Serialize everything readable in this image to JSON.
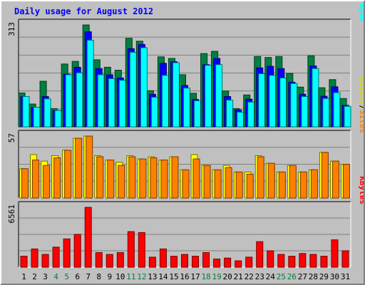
{
  "chart_data": {
    "type": "bar",
    "title": "Daily usage for August 2012",
    "days": [
      "1",
      "2",
      "3",
      "4",
      "5",
      "6",
      "7",
      "8",
      "9",
      "10",
      "11",
      "12",
      "13",
      "14",
      "15",
      "16",
      "17",
      "18",
      "19",
      "20",
      "21",
      "22",
      "23",
      "24",
      "25",
      "26",
      "27",
      "28",
      "29",
      "30",
      "31"
    ],
    "weekend_days": [
      "4",
      "5",
      "11",
      "12",
      "18",
      "19",
      "25",
      "26"
    ],
    "grid": true,
    "panels": [
      {
        "name": "hits-files-pages",
        "ymax": 313,
        "ymax_label": "313",
        "legend": [
          "Pages",
          "/",
          "Files",
          "/",
          "Hits"
        ],
        "series": [
          {
            "name": "Hits",
            "color": "#008040",
            "values": [
              104,
              70,
              140,
              56,
              193,
              201,
              313,
              206,
              183,
              174,
              272,
              263,
              111,
              215,
              210,
              160,
              103,
              225,
              232,
              110,
              56,
              98,
              216,
              213,
              216,
              164,
              122,
              218,
              120,
              145,
              87
            ]
          },
          {
            "name": "Files",
            "color": "#0000ff",
            "values": [
              93,
              60,
              93,
              50,
              162,
              183,
              292,
              179,
              160,
              150,
              240,
              253,
              100,
              195,
              200,
              127,
              84,
              191,
              210,
              93,
              52,
              85,
              181,
              186,
              179,
              137,
              100,
              187,
              94,
              123,
              66
            ]
          },
          {
            "name": "Pages",
            "color": "#00ffff",
            "values": [
              93,
              60,
              86,
              50,
              160,
              166,
              266,
              160,
              148,
              143,
              229,
              243,
              91,
              158,
              197,
              119,
              80,
              189,
              191,
              82,
              45,
              76,
              163,
              158,
              150,
              133,
              93,
              179,
              87,
              105,
              63
            ]
          }
        ]
      },
      {
        "name": "visits-sites",
        "ymax": 57,
        "ymax_label": "57",
        "legend": [
          "Sites",
          "/",
          "Visits"
        ],
        "series": [
          {
            "name": "Visits",
            "color": "#ffff00",
            "values": [
              27,
              40,
              34,
              39,
              44,
              55,
              57,
              39,
              35,
              33,
              39,
              36,
              38,
              35,
              38,
              26,
              40,
              30,
              26,
              30,
              24,
              24,
              39,
              32,
              24,
              30,
              24,
              26,
              42,
              34,
              31
            ]
          },
          {
            "name": "Sites",
            "color": "#ff8000",
            "values": [
              27,
              35,
              30,
              37,
              44,
              55,
              57,
              38,
              35,
              30,
              38,
              36,
              37,
              35,
              38,
              26,
              36,
              30,
              26,
              28,
              24,
              22,
              38,
              32,
              24,
              30,
              24,
              26,
              42,
              34,
              31
            ]
          }
        ]
      },
      {
        "name": "kbytes",
        "ymax": 6561,
        "ymax_label": "6561",
        "legend": [
          "KBytes"
        ],
        "series": [
          {
            "name": "KBytes",
            "color": "#ff0000",
            "values": [
              1200,
              2000,
              1400,
              2200,
              3100,
              3600,
              6561,
              1600,
              1400,
              1600,
              3900,
              3800,
              1100,
              2000,
              1200,
              1400,
              1200,
              1600,
              900,
              1000,
              700,
              1100,
              2800,
              1800,
              1400,
              1200,
              1500,
              1400,
              1200,
              3000,
              1800
            ]
          }
        ]
      }
    ]
  }
}
